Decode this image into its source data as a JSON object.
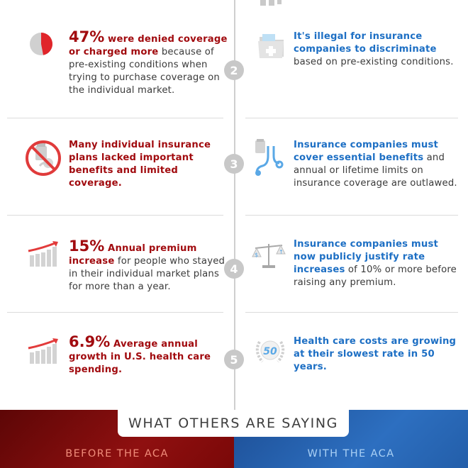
{
  "rows": [
    {
      "number": "2",
      "before": {
        "highlight": "47%",
        "bold": " were denied coverage or charged more",
        "rest": " because of pre-existing conditions when trying to purchase coverage on the individual market."
      },
      "after": {
        "bold": "It's illegal for insurance companies to discriminate",
        "rest": " based on pre-existing conditions."
      }
    },
    {
      "number": "3",
      "before": {
        "bold": "Many individual insurance plans lacked important benefits and limited coverage."
      },
      "after": {
        "bold": "Insurance companies must cover essential benefits",
        "rest": " and annual or lifetime limits on insurance coverage are outlawed."
      }
    },
    {
      "number": "4",
      "before": {
        "highlight": "15%",
        "bold": " Annual premium increase",
        "rest": " for people who stayed in their individual market plans for more than a year."
      },
      "after": {
        "bold": "Insurance companies must now publicly justify rate increases",
        "rest": " of 10% or more before raising any premium."
      }
    },
    {
      "number": "5",
      "before": {
        "highlight": "6.9%",
        "bold": " Average annual growth in U.S. health care spending."
      },
      "after": {
        "bold": "Health care costs are growing at their slowest rate in 50 years.",
        "badge": "50"
      }
    }
  ],
  "pie_fraction": 0.47,
  "colors": {
    "red": "#a10b0f",
    "blue": "#1d6fc4",
    "gray": "#c8c8c8"
  },
  "icons": [
    "pie-chart-icon",
    "medical-folder-icon",
    "no-medicine-icon",
    "stethoscope-icon",
    "rising-bar-chart-icon",
    "scale-balance-icon",
    "fifty-years-badge-icon"
  ],
  "footer": {
    "banner": "WHAT OTHERS ARE SAYING",
    "before_label": "BEFORE THE ACA",
    "with_label": "WITH THE ACA"
  }
}
